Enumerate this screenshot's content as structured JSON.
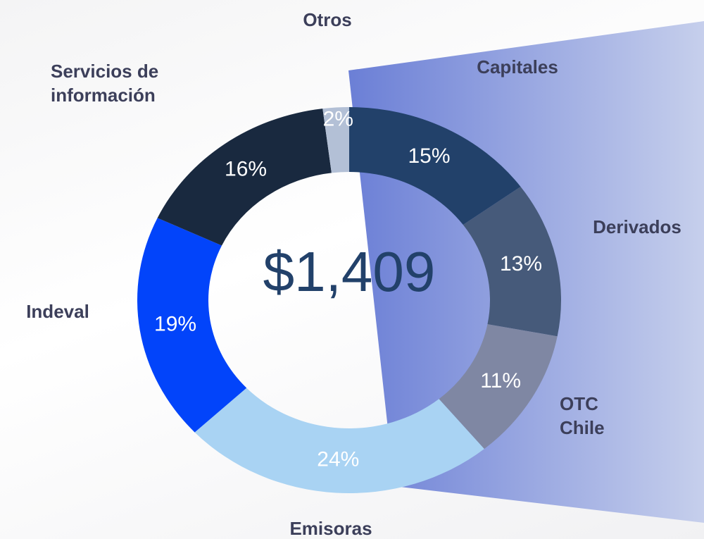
{
  "chart_data": {
    "type": "donut",
    "center_label": "$1,409",
    "categories": [
      "Capitales",
      "Derivados",
      "OTC Chile",
      "Emisoras",
      "Indeval",
      "Servicios de información",
      "Otros"
    ],
    "values": [
      15,
      13,
      11,
      24,
      19,
      16,
      2
    ],
    "value_labels": [
      "15%",
      "13%",
      "11%",
      "24%",
      "19%",
      "16%",
      "2%"
    ],
    "colors": [
      "#22416a",
      "#465a7a",
      "#7f87a3",
      "#a9d3f3",
      "#0244fa",
      "#19293f",
      "#b3c0d6"
    ]
  }
}
